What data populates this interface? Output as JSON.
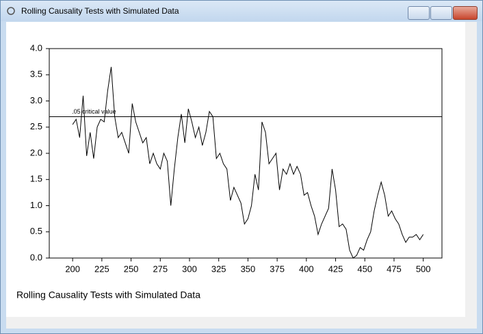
{
  "window": {
    "title": "Rolling Causality Tests with Simulated Data"
  },
  "chart_data": {
    "type": "line",
    "caption": "Rolling Causality Tests with Simulated Data",
    "x": [
      200,
      203,
      206,
      209,
      212,
      215,
      218,
      221,
      224,
      227,
      230,
      233,
      236,
      239,
      242,
      245,
      248,
      251,
      254,
      257,
      260,
      263,
      266,
      269,
      272,
      275,
      278,
      281,
      284,
      287,
      290,
      293,
      296,
      299,
      302,
      305,
      308,
      311,
      314,
      317,
      320,
      323,
      326,
      329,
      332,
      335,
      338,
      341,
      344,
      347,
      350,
      353,
      356,
      359,
      362,
      365,
      368,
      371,
      374,
      377,
      380,
      383,
      386,
      389,
      392,
      395,
      398,
      401,
      404,
      407,
      410,
      413,
      416,
      419,
      422,
      425,
      428,
      431,
      434,
      437,
      440,
      443,
      446,
      449,
      452,
      455,
      458,
      461,
      464,
      467,
      470,
      473,
      476,
      479,
      482,
      485,
      488,
      491,
      494,
      497,
      500
    ],
    "values": [
      2.55,
      2.65,
      2.3,
      3.1,
      1.95,
      2.4,
      1.9,
      2.5,
      2.65,
      2.6,
      3.2,
      3.65,
      2.7,
      2.3,
      2.4,
      2.2,
      2.0,
      2.95,
      2.6,
      2.4,
      2.2,
      2.3,
      1.8,
      2.0,
      1.8,
      1.7,
      2.0,
      1.85,
      1.0,
      1.7,
      2.3,
      2.75,
      2.2,
      2.85,
      2.6,
      2.3,
      2.5,
      2.15,
      2.4,
      2.8,
      2.7,
      1.9,
      2.0,
      1.8,
      1.7,
      1.1,
      1.35,
      1.2,
      1.05,
      0.65,
      0.75,
      1.0,
      1.6,
      1.3,
      2.6,
      2.4,
      1.8,
      1.9,
      2.0,
      1.3,
      1.7,
      1.6,
      1.8,
      1.6,
      1.75,
      1.6,
      1.2,
      1.25,
      1.0,
      0.8,
      0.45,
      0.65,
      0.8,
      0.95,
      1.7,
      1.3,
      0.6,
      0.65,
      0.55,
      0.15,
      0.0,
      0.05,
      0.2,
      0.15,
      0.35,
      0.5,
      0.9,
      1.2,
      1.45,
      1.2,
      0.8,
      0.9,
      0.75,
      0.65,
      0.45,
      0.3,
      0.4,
      0.4,
      0.45,
      0.35,
      0.45
    ],
    "color": "#000000",
    "xlim": [
      180,
      516
    ],
    "ylim": [
      0,
      4
    ],
    "xticks": [
      200,
      225,
      250,
      275,
      300,
      325,
      350,
      375,
      400,
      425,
      450,
      475,
      500
    ],
    "yticks": [
      {
        "value": 0,
        "label": "0.0"
      },
      0.5,
      {
        "value": 1,
        "label": "1.0"
      },
      1.5,
      {
        "value": 2,
        "label": "2.0"
      },
      2.5,
      {
        "value": 3,
        "label": "3.0"
      },
      3.5,
      {
        "value": 4,
        "label": "4.0"
      }
    ],
    "reference_line": {
      "value": 2.7,
      "label": ".05 critical value"
    }
  }
}
